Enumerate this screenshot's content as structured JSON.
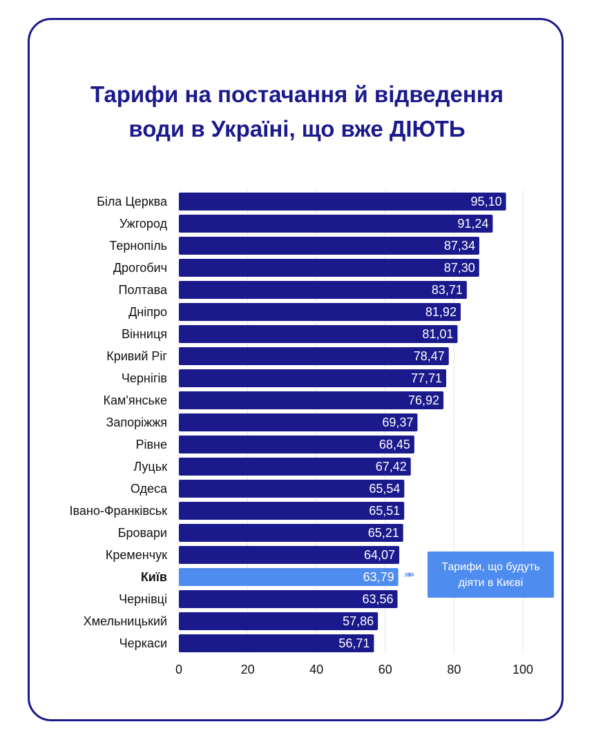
{
  "title_lines": [
    "Тарифи на постачання й відведення",
    "води в Україні, що вже ДІЮТЬ"
  ],
  "callout": {
    "lines": [
      "Тарифи, що будуть",
      "діяти в Києві"
    ],
    "arrow": "»»"
  },
  "colors": {
    "bar": "#1b1a8c",
    "highlight_bar": "#4f8cf0",
    "gridline": "#e3e3e3",
    "label": "#111111",
    "title": "#1b1a8c"
  },
  "chart_data": {
    "type": "bar",
    "orientation": "horizontal",
    "categories": [
      "Біла Церква",
      "Ужгород",
      "Тернопіль",
      "Дрогобич",
      "Полтава",
      "Дніпро",
      "Вінниця",
      "Кривий Ріг",
      "Чернігів",
      "Кам'янське",
      "Запоріжжя",
      "Рівне",
      "Луцьк",
      "Одеса",
      "Івано-Франківськ",
      "Бровари",
      "Кременчук",
      "Київ",
      "Чернівці",
      "Хмельницький",
      "Черкаси"
    ],
    "values": [
      95.1,
      91.24,
      87.34,
      87.3,
      83.71,
      81.92,
      81.01,
      78.47,
      77.71,
      76.92,
      69.37,
      68.45,
      67.42,
      65.54,
      65.51,
      65.21,
      64.07,
      63.79,
      63.56,
      57.86,
      56.71
    ],
    "value_labels": [
      "95,10",
      "91,24",
      "87,34",
      "87,30",
      "83,71",
      "81,92",
      "81,01",
      "78,47",
      "77,71",
      "76,92",
      "69,37",
      "68,45",
      "67,42",
      "65,54",
      "65,51",
      "65,21",
      "64,07",
      "63,79",
      "63,56",
      "57,86",
      "56,71"
    ],
    "highlight": "Київ",
    "xlim": [
      0,
      100
    ],
    "xticks": [
      0,
      20,
      40,
      60,
      80,
      100
    ],
    "grid": true,
    "legend": "none"
  }
}
